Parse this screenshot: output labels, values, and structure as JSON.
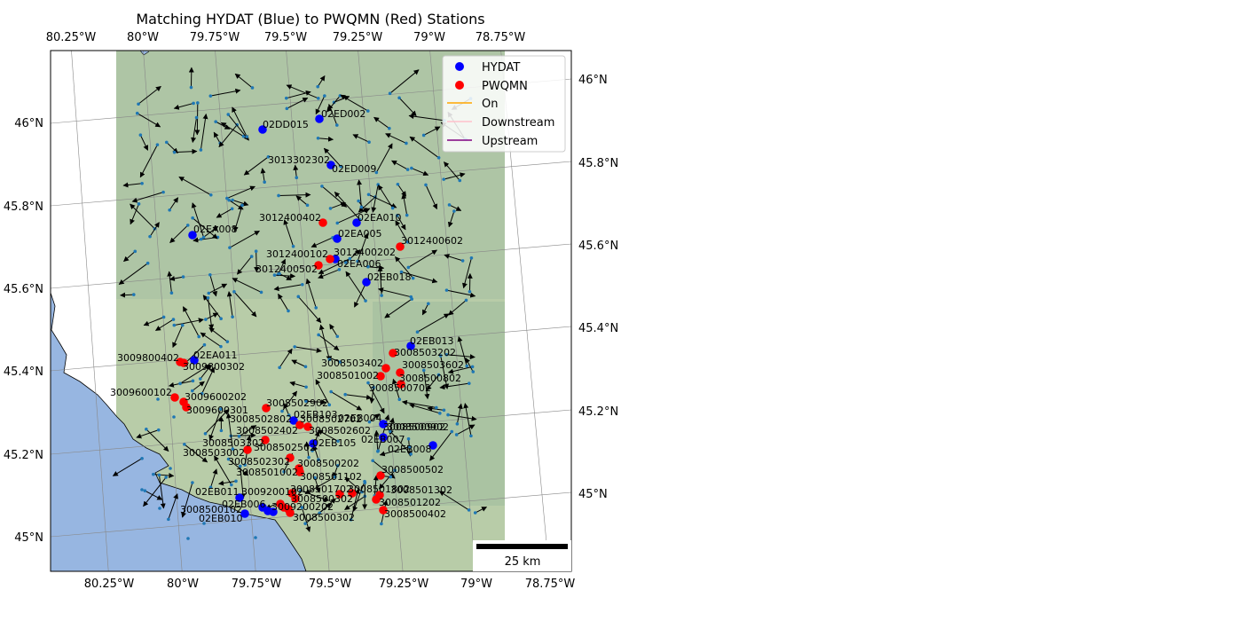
{
  "title": "Matching HYDAT (Blue) to PWQMN (Red) Stations",
  "colors": {
    "hydat": "#0000ff",
    "pwqmn": "#ff0000",
    "on": "#ffa500",
    "downstream": "#ffc0cb",
    "upstream": "#800080",
    "water": "#97b6e1",
    "land_green": "#a9c09d",
    "node": "#1f77b4"
  },
  "axes": {
    "top_lon_labels": [
      "80.25°W",
      "80°W",
      "79.75°W",
      "79.5°W",
      "79.25°W",
      "79°W",
      "78.75°W"
    ],
    "bottom_lon_labels": [
      "80.25°W",
      "80°W",
      "79.75°W",
      "79.5°W",
      "79.25°W",
      "79°W",
      "78.75°W"
    ],
    "left_lat_labels": [
      "46°N",
      "45.8°N",
      "45.6°N",
      "45.4°N",
      "45.2°N",
      "45°N"
    ],
    "right_lat_labels": [
      "46°N",
      "45.8°N",
      "45.6°N",
      "45.4°N",
      "45.2°N",
      "45°N"
    ]
  },
  "legend": {
    "items": [
      {
        "label": "HYDAT",
        "kind": "marker",
        "color": "#0000ff"
      },
      {
        "label": "PWQMN",
        "kind": "marker",
        "color": "#ff0000"
      },
      {
        "label": "On",
        "kind": "line",
        "color": "#ffa500"
      },
      {
        "label": "Downstream",
        "kind": "line",
        "color": "#ffc0cb"
      },
      {
        "label": "Upstream",
        "kind": "line",
        "color": "#800080"
      }
    ]
  },
  "scalebar": {
    "label": "25 km"
  },
  "stations": {
    "hydat": [
      "02ED002",
      "02DD015",
      "02ED009",
      "02EA010",
      "02EA005",
      "02EA006",
      "02EA008",
      "02EB018",
      "02EB013",
      "02EA011",
      "02EB103",
      "02EB004",
      "02EB105",
      "02EB007",
      "02EB008",
      "02EB011",
      "02EB006",
      "02EB010"
    ],
    "pwqmn": [
      "3013302302",
      "3012400402",
      "3012400602",
      "3012400102",
      "3012400202",
      "3012400502",
      "3009800402",
      "3009800302",
      "3009600102",
      "3009600202",
      "3009600301",
      "3008503402",
      "3008503202",
      "3008503602",
      "3008501002",
      "3008500802",
      "3008500702",
      "3008502902",
      "3008502802",
      "3008502702",
      "3008502602",
      "3008503302",
      "3008502402",
      "3008502502",
      "3008503002",
      "3008502302",
      "3008500202",
      "3008501002",
      "3008500902",
      "3008500502",
      "3008501102",
      "3008501702",
      "3009200102",
      "3008501802",
      "3008501302",
      "3008501202",
      "3008500402",
      "3008500102",
      "3008500302",
      "3009200202"
    ]
  },
  "map_labels": [
    "02ED002",
    "02DD015",
    "3013302302",
    "02ED009",
    "3012400402",
    "02EA010",
    "02EA008",
    "02EA005",
    "3012400602",
    "3012400102",
    "3012400202",
    "02EA006",
    "3012400502",
    "02EB018",
    "02EB013",
    "3009800402",
    "02EA011",
    "3009800302",
    "3008503402",
    "3008503202",
    "3008503602",
    "3008501002",
    "3008500802",
    "3008500702",
    "3009600102",
    "3009600202",
    "3009600301",
    "3008502902",
    "02EB103",
    "02EB004",
    "3008502802",
    "3008502702",
    "3008500902",
    "3008502602",
    "3008502402",
    "02EB007",
    "3008500902",
    "02EB105",
    "3008503302",
    "02EB008",
    "3008502502",
    "3008503002",
    "3008502302",
    "3008500202",
    "3008501002",
    "3008500502",
    "3008501102",
    "02EB011",
    "3009200102",
    "3008501702",
    "3008501802",
    "3008501302",
    "02EB006",
    "3008500302",
    "3008501202",
    "3009200202",
    "3008500102",
    "3008500402",
    "02EB010",
    "3008500302"
  ]
}
